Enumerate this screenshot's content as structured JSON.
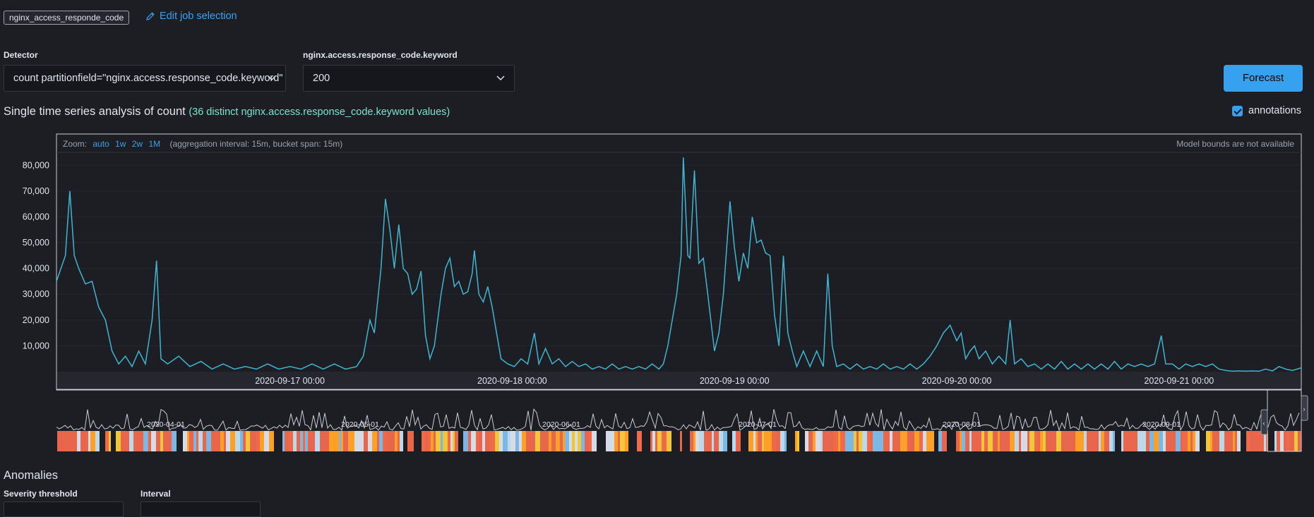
{
  "job": {
    "badge": "nginx_access_responde_code",
    "edit_link": "Edit job selection"
  },
  "detector": {
    "label": "Detector",
    "value": "count partitionfield=\"nginx.access.response_code.keyword\""
  },
  "partition": {
    "label": "nginx.access.response_code.keyword",
    "value": "200"
  },
  "forecast_button": "Forecast",
  "section": {
    "title": "Single time series analysis of count",
    "subtitle": "(36 distinct nginx.access.response_code.keyword values)"
  },
  "annotations_toggle": {
    "label": "annotations",
    "checked": true
  },
  "chart_header": {
    "zoom_label": "Zoom:",
    "zoom_options": [
      "auto",
      "1w",
      "2w",
      "1M"
    ],
    "aggregation": "(aggregation interval: 15m, bucket span: 15m)",
    "model_bounds": "Model bounds are not available"
  },
  "colors": {
    "line": "#3fb5d0",
    "accent": "#36a2ef",
    "context": "#c8ccd4"
  },
  "chart_data": {
    "type": "line",
    "ylim": [
      0,
      85000
    ],
    "yticks": [
      10000,
      20000,
      30000,
      40000,
      50000,
      60000,
      70000,
      80000
    ],
    "ytick_labels": [
      "10,000",
      "20,000",
      "30,000",
      "40,000",
      "50,000",
      "60,000",
      "70,000",
      "80,000"
    ],
    "xlim": [
      -1.05,
      4.55
    ],
    "xticks": [
      0,
      1,
      2,
      3,
      4
    ],
    "xtick_labels": [
      "2020-09-17 00:00",
      "2020-09-18 00:00",
      "2020-09-19 00:00",
      "2020-09-20 00:00",
      "2020-09-21 00:00"
    ],
    "series": [
      {
        "values": [
          [
            -1.05,
            35000
          ],
          [
            -1.03,
            40000
          ],
          [
            -1.01,
            45000
          ],
          [
            -0.99,
            70000
          ],
          [
            -0.97,
            45000
          ],
          [
            -0.95,
            40000
          ],
          [
            -0.92,
            34000
          ],
          [
            -0.89,
            35000
          ],
          [
            -0.86,
            25000
          ],
          [
            -0.83,
            20000
          ],
          [
            -0.8,
            8000
          ],
          [
            -0.77,
            3000
          ],
          [
            -0.74,
            6000
          ],
          [
            -0.71,
            2000
          ],
          [
            -0.68,
            8000
          ],
          [
            -0.65,
            3000
          ],
          [
            -0.62,
            20000
          ],
          [
            -0.6,
            43000
          ],
          [
            -0.58,
            5000
          ],
          [
            -0.55,
            3000
          ],
          [
            -0.5,
            6000
          ],
          [
            -0.45,
            2000
          ],
          [
            -0.4,
            4000
          ],
          [
            -0.35,
            1000
          ],
          [
            -0.3,
            3000
          ],
          [
            -0.25,
            1000
          ],
          [
            -0.2,
            2000
          ],
          [
            -0.15,
            1000
          ],
          [
            -0.1,
            3000
          ],
          [
            -0.05,
            1000
          ],
          [
            0.0,
            2000
          ],
          [
            0.05,
            1000
          ],
          [
            0.1,
            3000
          ],
          [
            0.15,
            1000
          ],
          [
            0.2,
            3000
          ],
          [
            0.25,
            1000
          ],
          [
            0.3,
            2000
          ],
          [
            0.33,
            6000
          ],
          [
            0.36,
            20000
          ],
          [
            0.38,
            15000
          ],
          [
            0.41,
            40000
          ],
          [
            0.43,
            67000
          ],
          [
            0.45,
            55000
          ],
          [
            0.47,
            40000
          ],
          [
            0.49,
            57000
          ],
          [
            0.51,
            40000
          ],
          [
            0.53,
            38000
          ],
          [
            0.55,
            30000
          ],
          [
            0.57,
            32000
          ],
          [
            0.59,
            39000
          ],
          [
            0.61,
            14000
          ],
          [
            0.63,
            5000
          ],
          [
            0.65,
            10000
          ],
          [
            0.68,
            30000
          ],
          [
            0.7,
            40000
          ],
          [
            0.72,
            44000
          ],
          [
            0.74,
            33000
          ],
          [
            0.76,
            35000
          ],
          [
            0.78,
            30000
          ],
          [
            0.8,
            31000
          ],
          [
            0.82,
            38000
          ],
          [
            0.83,
            47000
          ],
          [
            0.85,
            30000
          ],
          [
            0.87,
            27000
          ],
          [
            0.89,
            33000
          ],
          [
            0.91,
            25000
          ],
          [
            0.93,
            15000
          ],
          [
            0.95,
            5000
          ],
          [
            0.98,
            3000
          ],
          [
            1.01,
            2000
          ],
          [
            1.04,
            5000
          ],
          [
            1.07,
            3000
          ],
          [
            1.1,
            15000
          ],
          [
            1.12,
            3000
          ],
          [
            1.15,
            9000
          ],
          [
            1.18,
            3000
          ],
          [
            1.21,
            5000
          ],
          [
            1.24,
            2000
          ],
          [
            1.27,
            4000
          ],
          [
            1.3,
            2000
          ],
          [
            1.33,
            3000
          ],
          [
            1.36,
            1000
          ],
          [
            1.39,
            2000
          ],
          [
            1.42,
            1000
          ],
          [
            1.45,
            3000
          ],
          [
            1.48,
            1000
          ],
          [
            1.51,
            2000
          ],
          [
            1.54,
            1000
          ],
          [
            1.57,
            2000
          ],
          [
            1.6,
            1000
          ],
          [
            1.63,
            3000
          ],
          [
            1.66,
            1000
          ],
          [
            1.68,
            3000
          ],
          [
            1.7,
            10000
          ],
          [
            1.74,
            30000
          ],
          [
            1.76,
            45000
          ],
          [
            1.77,
            83000
          ],
          [
            1.79,
            45000
          ],
          [
            1.8,
            44000
          ],
          [
            1.82,
            78000
          ],
          [
            1.84,
            42000
          ],
          [
            1.86,
            44000
          ],
          [
            1.88,
            30000
          ],
          [
            1.91,
            8000
          ],
          [
            1.93,
            15000
          ],
          [
            1.95,
            30000
          ],
          [
            1.98,
            66000
          ],
          [
            2.0,
            48000
          ],
          [
            2.02,
            35000
          ],
          [
            2.04,
            46000
          ],
          [
            2.06,
            40000
          ],
          [
            2.08,
            60000
          ],
          [
            2.1,
            50000
          ],
          [
            2.12,
            51000
          ],
          [
            2.14,
            46000
          ],
          [
            2.16,
            45000
          ],
          [
            2.18,
            22000
          ],
          [
            2.2,
            10000
          ],
          [
            2.22,
            45000
          ],
          [
            2.24,
            15000
          ],
          [
            2.26,
            8000
          ],
          [
            2.28,
            2000
          ],
          [
            2.31,
            8000
          ],
          [
            2.34,
            2000
          ],
          [
            2.37,
            8000
          ],
          [
            2.4,
            2000
          ],
          [
            2.42,
            38000
          ],
          [
            2.44,
            10000
          ],
          [
            2.46,
            2000
          ],
          [
            2.49,
            3000
          ],
          [
            2.52,
            1000
          ],
          [
            2.55,
            3000
          ],
          [
            2.58,
            1000
          ],
          [
            2.61,
            2000
          ],
          [
            2.64,
            1000
          ],
          [
            2.67,
            3000
          ],
          [
            2.7,
            1000
          ],
          [
            2.73,
            2000
          ],
          [
            2.76,
            1000
          ],
          [
            2.79,
            3000
          ],
          [
            2.82,
            1000
          ],
          [
            2.85,
            3000
          ],
          [
            2.88,
            6000
          ],
          [
            2.91,
            10000
          ],
          [
            2.94,
            15000
          ],
          [
            2.97,
            18000
          ],
          [
            3.0,
            12000
          ],
          [
            3.02,
            15000
          ],
          [
            3.04,
            5000
          ],
          [
            3.06,
            8000
          ],
          [
            3.08,
            10000
          ],
          [
            3.1,
            5000
          ],
          [
            3.13,
            8000
          ],
          [
            3.16,
            3000
          ],
          [
            3.19,
            6000
          ],
          [
            3.22,
            3000
          ],
          [
            3.24,
            20000
          ],
          [
            3.26,
            3000
          ],
          [
            3.29,
            5000
          ],
          [
            3.32,
            2000
          ],
          [
            3.35,
            3000
          ],
          [
            3.38,
            1000
          ],
          [
            3.41,
            3000
          ],
          [
            3.44,
            1000
          ],
          [
            3.47,
            4000
          ],
          [
            3.5,
            1000
          ],
          [
            3.53,
            3000
          ],
          [
            3.56,
            1000
          ],
          [
            3.59,
            3000
          ],
          [
            3.62,
            1000
          ],
          [
            3.65,
            3000
          ],
          [
            3.68,
            1000
          ],
          [
            3.71,
            4000
          ],
          [
            3.74,
            1000
          ],
          [
            3.77,
            3000
          ],
          [
            3.8,
            2000
          ],
          [
            3.83,
            3000
          ],
          [
            3.86,
            2000
          ],
          [
            3.89,
            3000
          ],
          [
            3.92,
            14000
          ],
          [
            3.94,
            3000
          ],
          [
            3.97,
            3000
          ],
          [
            4.0,
            1000
          ],
          [
            4.03,
            3000
          ],
          [
            4.06,
            2000
          ],
          [
            4.09,
            3000
          ],
          [
            4.12,
            2000
          ],
          [
            4.15,
            3000
          ],
          [
            4.18,
            1000
          ],
          [
            4.21,
            500
          ],
          [
            4.24,
            200
          ],
          [
            4.27,
            300
          ],
          [
            4.3,
            200
          ],
          [
            4.33,
            300
          ],
          [
            4.36,
            200
          ],
          [
            4.39,
            1000
          ],
          [
            4.42,
            300
          ],
          [
            4.45,
            2000
          ],
          [
            4.48,
            1000
          ],
          [
            4.51,
            500
          ],
          [
            4.55,
            1500
          ]
        ]
      }
    ],
    "context_labels": [
      "2020-04-01",
      "2020-05-01",
      "2020-06-01",
      "2020-07-01",
      "2020-08-01",
      "2020-09-01"
    ]
  },
  "anomalies": {
    "title": "Anomalies",
    "severity_label": "Severity threshold",
    "interval_label": "Interval"
  }
}
